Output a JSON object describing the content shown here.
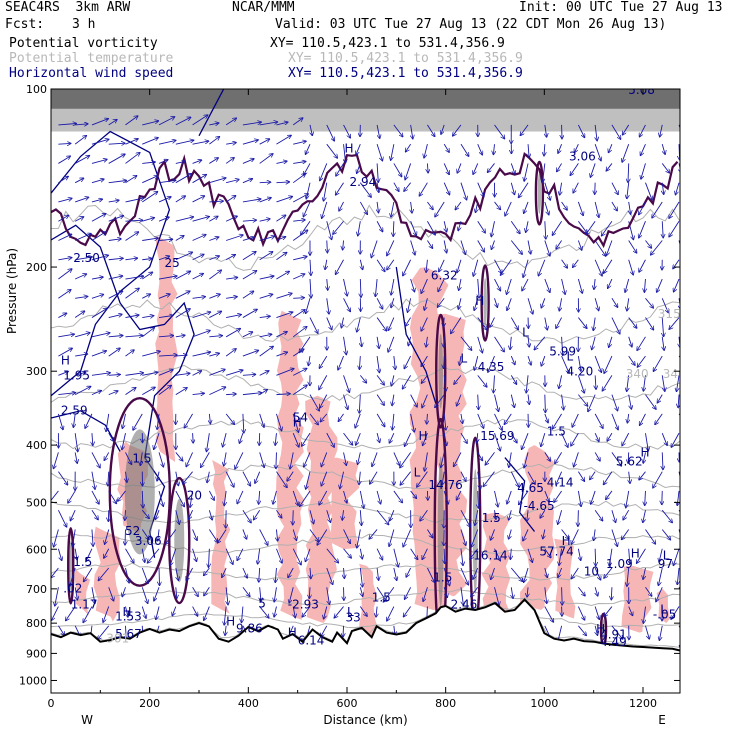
{
  "header": {
    "model": "SEAC4RS  3km ARW",
    "org": "NCAR/MMM",
    "init": "Init: 00 UTC Tue 27 Aug 13",
    "fcst_label": "Fcst:",
    "fcst_value": "3 h",
    "valid": "Valid: 03 UTC Tue 27 Aug 13 (22 CDT Mon 26 Aug 13)"
  },
  "fields": [
    {
      "name": "Potential vorticity",
      "xy": "XY= 110.5,423.1 to 531.4,356.9",
      "color": "#000000"
    },
    {
      "name": "Potential temperature",
      "xy": "XY= 110.5,423.1 to 531.4,356.9",
      "color": "#b8b8b8"
    },
    {
      "name": "Horizontal wind speed",
      "xy": "XY= 110.5,423.1 to 531.4,356.9",
      "color": "#000080"
    }
  ],
  "chart_data": {
    "type": "cross-section",
    "xlabel": "Distance (km)",
    "ylabel": "Pressure (hPa)",
    "xlim": [
      0,
      1275
    ],
    "ylim": [
      100,
      1050
    ],
    "y_log_scale": true,
    "x_ticks": [
      0,
      200,
      400,
      600,
      800,
      1000,
      1200
    ],
    "y_ticks": [
      100,
      200,
      300,
      400,
      500,
      600,
      700,
      800,
      900,
      1000
    ],
    "x_end_labels": {
      "left": "W",
      "right": "E"
    },
    "terrain_pressure": [
      [
        0,
        835
      ],
      [
        20,
        845
      ],
      [
        40,
        830
      ],
      [
        60,
        838
      ],
      [
        80,
        832
      ],
      [
        100,
        860
      ],
      [
        120,
        855
      ],
      [
        140,
        845
      ],
      [
        160,
        850
      ],
      [
        180,
        830
      ],
      [
        200,
        818
      ],
      [
        220,
        830
      ],
      [
        240,
        820
      ],
      [
        260,
        825
      ],
      [
        280,
        810
      ],
      [
        300,
        800
      ],
      [
        320,
        810
      ],
      [
        340,
        850
      ],
      [
        360,
        860
      ],
      [
        380,
        840
      ],
      [
        400,
        812
      ],
      [
        420,
        825
      ],
      [
        440,
        808
      ],
      [
        460,
        820
      ],
      [
        470,
        850
      ],
      [
        490,
        835
      ],
      [
        510,
        860
      ],
      [
        530,
        820
      ],
      [
        550,
        845
      ],
      [
        570,
        860
      ],
      [
        580,
        830
      ],
      [
        600,
        865
      ],
      [
        610,
        825
      ],
      [
        630,
        815
      ],
      [
        650,
        845
      ],
      [
        660,
        810
      ],
      [
        680,
        830
      ],
      [
        700,
        836
      ],
      [
        720,
        830
      ],
      [
        740,
        800
      ],
      [
        760,
        785
      ],
      [
        780,
        770
      ],
      [
        790,
        752
      ],
      [
        800,
        748
      ],
      [
        820,
        765
      ],
      [
        840,
        756
      ],
      [
        860,
        760
      ],
      [
        880,
        752
      ],
      [
        900,
        740
      ],
      [
        920,
        765
      ],
      [
        940,
        760
      ],
      [
        960,
        730
      ],
      [
        980,
        760
      ],
      [
        1000,
        832
      ],
      [
        1020,
        850
      ],
      [
        1040,
        856
      ],
      [
        1060,
        850
      ],
      [
        1080,
        858
      ],
      [
        1100,
        860
      ],
      [
        1120,
        866
      ],
      [
        1140,
        870
      ],
      [
        1160,
        873
      ],
      [
        1180,
        876
      ],
      [
        1200,
        878
      ],
      [
        1220,
        880
      ],
      [
        1240,
        882
      ],
      [
        1260,
        884
      ],
      [
        1275,
        890
      ]
    ],
    "theta_isentropes_K": [
      300,
      305,
      310,
      315,
      320,
      325,
      330,
      335,
      340,
      345,
      350
    ],
    "wind_speed_contours_ms": [
      5,
      10,
      15,
      20,
      25
    ],
    "labels": [
      {
        "text": "2.50",
        "x": 45,
        "y": 196,
        "color": "#000080"
      },
      {
        "text": "25",
        "x": 230,
        "y": 200,
        "color": "#000080"
      },
      {
        "text": "2.94",
        "x": 605,
        "y": 146,
        "color": "#000080"
      },
      {
        "text": "4.65",
        "x": 945,
        "y": 480,
        "color": "#000080"
      },
      {
        "text": "3.06",
        "x": 1050,
        "y": 132,
        "color": "#000080"
      },
      {
        "text": "5.08",
        "x": 1170,
        "y": 102,
        "color": "#000080"
      },
      {
        "text": "6.32",
        "x": 770,
        "y": 210,
        "color": "#000080"
      },
      {
        "text": "1.95",
        "x": 25,
        "y": 310,
        "color": "#000080"
      },
      {
        "text": "2.59",
        "x": 20,
        "y": 355,
        "color": "#000080"
      },
      {
        "text": "1.5",
        "x": 165,
        "y": 428,
        "color": "#000080"
      },
      {
        "text": "54",
        "x": 490,
        "y": 365,
        "color": "#000080"
      },
      {
        "text": "H",
        "x": 490,
        "y": 372,
        "color": "#000080"
      },
      {
        "text": "4.35",
        "x": 865,
        "y": 300,
        "color": "#000080"
      },
      {
        "text": "5.99",
        "x": 1010,
        "y": 282,
        "color": "#000080"
      },
      {
        "text": "4.20",
        "x": 1045,
        "y": 305,
        "color": "#000080"
      },
      {
        "text": "15.69",
        "x": 870,
        "y": 392,
        "color": "#000080"
      },
      {
        "text": "1.5",
        "x": 1005,
        "y": 385,
        "color": "#000080"
      },
      {
        "text": "5.62",
        "x": 1145,
        "y": 433,
        "color": "#000080"
      },
      {
        "text": "20",
        "x": 275,
        "y": 494,
        "color": "#000080"
      },
      {
        "text": "14.76",
        "x": 765,
        "y": 475,
        "color": "#000080"
      },
      {
        "text": "4.14",
        "x": 1005,
        "y": 470,
        "color": "#000080"
      },
      {
        "text": "-4.65",
        "x": 958,
        "y": 515,
        "color": "#000080"
      },
      {
        "text": "52",
        "x": 150,
        "y": 568,
        "color": "#000080"
      },
      {
        "text": "3.06",
        "x": 170,
        "y": 590,
        "color": "#000080"
      },
      {
        "text": "1.5",
        "x": 873,
        "y": 540,
        "color": "#000080"
      },
      {
        "text": "16.14",
        "x": 856,
        "y": 625,
        "color": "#000080"
      },
      {
        "text": "57.74",
        "x": 990,
        "y": 615,
        "color": "#000080"
      },
      {
        "text": "1.09",
        "x": 1125,
        "y": 645,
        "color": "#000080"
      },
      {
        "text": "97",
        "x": 1230,
        "y": 645,
        "color": "#000080"
      },
      {
        "text": "1.5",
        "x": 45,
        "y": 640,
        "color": "#000080"
      },
      {
        "text": "1.5",
        "x": 775,
        "y": 680,
        "color": "#000080"
      },
      {
        "text": "10",
        "x": 1080,
        "y": 665,
        "color": "#000080"
      },
      {
        "text": ".02",
        "x": 25,
        "y": 710,
        "color": "#000080"
      },
      {
        "text": "1.17",
        "x": 40,
        "y": 755,
        "color": "#000080"
      },
      {
        "text": "5",
        "x": 420,
        "y": 752,
        "color": "#000080"
      },
      {
        "text": "-2.93",
        "x": 480,
        "y": 755,
        "color": "#000080"
      },
      {
        "text": "1.5",
        "x": 650,
        "y": 735,
        "color": "#000080"
      },
      {
        "text": "2.46",
        "x": 810,
        "y": 755,
        "color": "#000080"
      },
      {
        "text": "1.53",
        "x": 130,
        "y": 792,
        "color": "#000080"
      },
      {
        "text": "9.86",
        "x": 375,
        "y": 830,
        "color": "#000080"
      },
      {
        "text": "33",
        "x": 597,
        "y": 795,
        "color": "#000080"
      },
      {
        "text": "-.05",
        "x": 1220,
        "y": 785,
        "color": "#000080"
      },
      {
        "text": "5.67",
        "x": 130,
        "y": 848,
        "color": "#000080"
      },
      {
        "text": "6.14",
        "x": 500,
        "y": 870,
        "color": "#000080"
      },
      {
        "text": "4.91",
        "x": 1113,
        "y": 850,
        "color": "#000080"
      },
      {
        "text": "4.49",
        "x": 1113,
        "y": 875,
        "color": "#000080"
      },
      {
        "text": "340",
        "x": 1165,
        "y": 308,
        "color": "#b8b8b8"
      },
      {
        "text": "340",
        "x": 1240,
        "y": 308,
        "color": "#b8b8b8"
      },
      {
        "text": "315",
        "x": 1230,
        "y": 244,
        "color": "#b8b8b8"
      },
      {
        "text": "301",
        "x": 112,
        "y": 862,
        "color": "#b8b8b8"
      }
    ],
    "hl_markers": [
      {
        "text": "H",
        "x": 20,
        "y": 292
      },
      {
        "text": "H",
        "x": 595,
        "y": 128
      },
      {
        "text": "H",
        "x": 860,
        "y": 232
      },
      {
        "text": "L",
        "x": 830,
        "y": 290
      },
      {
        "text": "L",
        "x": 955,
        "y": 262
      },
      {
        "text": "L",
        "x": 1045,
        "y": 288
      },
      {
        "text": "H",
        "x": 745,
        "y": 392
      },
      {
        "text": "L",
        "x": 735,
        "y": 452
      },
      {
        "text": "H",
        "x": 1195,
        "y": 418
      },
      {
        "text": "H",
        "x": 1035,
        "y": 590
      },
      {
        "text": "H",
        "x": 1175,
        "y": 620
      },
      {
        "text": "L",
        "x": 1240,
        "y": 625
      },
      {
        "text": "H",
        "x": 145,
        "y": 778
      },
      {
        "text": "H",
        "x": 355,
        "y": 808
      },
      {
        "text": "L",
        "x": 600,
        "y": 778
      },
      {
        "text": "H",
        "x": 480,
        "y": 842
      },
      {
        "text": "H",
        "x": 1105,
        "y": 832
      },
      {
        "text": "L",
        "x": 1235,
        "y": 770
      }
    ]
  }
}
